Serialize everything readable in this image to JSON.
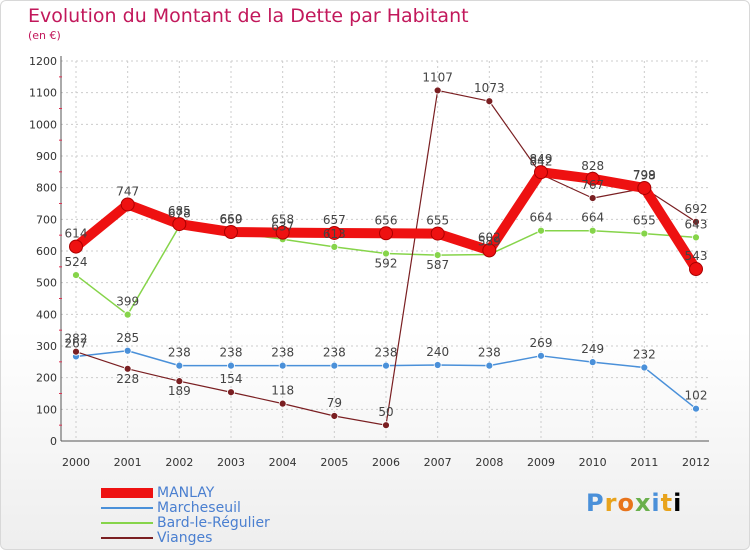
{
  "chart_data": {
    "type": "line",
    "title": "Evolution du Montant de la Dette par Habitant",
    "subtitle": "(en €)",
    "x": [
      "2000",
      "2001",
      "2002",
      "2003",
      "2004",
      "2005",
      "2006",
      "2007",
      "2008",
      "2009",
      "2010",
      "2011",
      "2012"
    ],
    "ylim": [
      0,
      1200
    ],
    "yticks": [
      0,
      100,
      200,
      300,
      400,
      500,
      600,
      700,
      800,
      900,
      1000,
      1100,
      1200
    ],
    "grid": true,
    "legend_position": "bottom-left",
    "series": [
      {
        "name": "MANLAY",
        "color": "#ee1111",
        "values": [
          614,
          747,
          685,
          660,
          658,
          657,
          656,
          655,
          602,
          849,
          828,
          799,
          543
        ],
        "labels": [
          "614",
          "747",
          "685",
          "660",
          "658",
          "657",
          "656",
          "655",
          "602",
          "849",
          "828",
          "799",
          "543"
        ]
      },
      {
        "name": "Marcheseuil",
        "color": "#4a90d9",
        "values": [
          267,
          285,
          238,
          238,
          238,
          238,
          238,
          240,
          238,
          269,
          249,
          232,
          102
        ],
        "labels": [
          "267",
          "285",
          "238",
          "238",
          "238",
          "238",
          "238",
          "240",
          "238",
          "269",
          "249",
          "232",
          "102"
        ]
      },
      {
        "name": "Bard-le-Régulier",
        "color": "#86d44a",
        "values": [
          524,
          399,
          678,
          659,
          637,
          613,
          592,
          587,
          589,
          664,
          664,
          655,
          643
        ],
        "labels": [
          "524",
          "399",
          "678",
          "659",
          "637",
          "613",
          "592",
          "587",
          "589",
          "664",
          "664",
          "655",
          "643"
        ]
      },
      {
        "name": "Vianges",
        "color": "#7a1f22",
        "values": [
          282,
          228,
          189,
          154,
          118,
          79,
          50,
          1107,
          1073,
          842,
          767,
          798,
          692
        ],
        "labels": [
          "282",
          "228",
          "189",
          "154",
          "118",
          "79",
          "50",
          "1107",
          "1073",
          "842",
          "767",
          "798",
          "692"
        ]
      }
    ]
  },
  "legend": {
    "items": [
      {
        "label": "MANLAY",
        "color": "#ee1111",
        "weight": 10
      },
      {
        "label": "Marcheseuil",
        "color": "#4a90d9",
        "weight": 2
      },
      {
        "label": "Bard-le-Régulier",
        "color": "#86d44a",
        "weight": 2
      },
      {
        "label": "Vianges",
        "color": "#7a1f22",
        "weight": 2
      }
    ]
  },
  "logo": {
    "letters": [
      "P",
      "r",
      "o",
      "x",
      "i",
      "t",
      "i"
    ]
  }
}
